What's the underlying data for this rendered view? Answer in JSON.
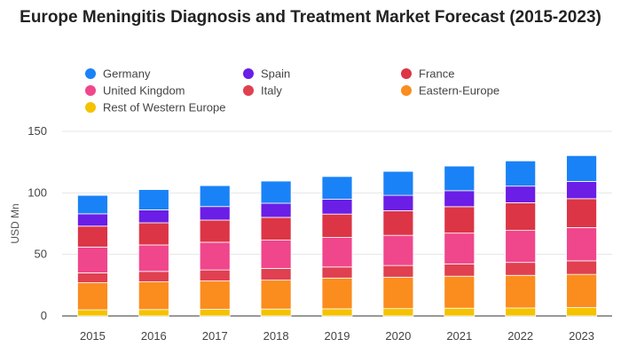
{
  "chart_data": {
    "type": "bar",
    "stacked": true,
    "title": "Europe Meningitis Diagnosis and Treatment Market Forecast (2015-2023)",
    "xlabel": "",
    "ylabel": "USD Mn",
    "ylim": [
      0,
      150
    ],
    "yticks": [
      "0",
      "50",
      "100",
      "150"
    ],
    "grid": true,
    "legend_position": "top",
    "categories": [
      "2015",
      "2016",
      "2017",
      "2018",
      "2019",
      "2020",
      "2021",
      "2022",
      "2023"
    ],
    "series": [
      {
        "name": "Rest of Western Europe",
        "color": "#f5c200",
        "values": [
          5,
          5.2,
          5.4,
          5.6,
          5.8,
          6.0,
          6.3,
          6.5,
          6.8
        ]
      },
      {
        "name": "Eastern-Europe",
        "color": "#fb8c1e",
        "values": [
          22,
          22.5,
          23,
          23.5,
          25,
          25.5,
          26,
          26.5,
          27
        ]
      },
      {
        "name": "Italy",
        "color": "#e04050",
        "values": [
          8,
          8.5,
          9,
          9.5,
          9,
          9.5,
          10,
          10.5,
          11
        ]
      },
      {
        "name": "United Kingdom",
        "color": "#f0468c",
        "values": [
          21,
          21.5,
          22.5,
          23,
          24,
          24.5,
          25,
          26,
          27
        ]
      },
      {
        "name": "France",
        "color": "#dc3545",
        "values": [
          17,
          18,
          18,
          18.5,
          19,
          20,
          21.5,
          22.5,
          23.5
        ]
      },
      {
        "name": "Spain",
        "color": "#6a1ee6",
        "values": [
          10,
          10.5,
          11,
          11.5,
          12,
          12.5,
          13,
          13.5,
          14
        ]
      },
      {
        "name": "Germany",
        "color": "#1a82f7",
        "values": [
          15,
          16.5,
          17,
          18,
          18.5,
          19.5,
          20,
          20.5,
          21
        ]
      }
    ],
    "legend_order": [
      "Germany",
      "Spain",
      "France",
      "United Kingdom",
      "Italy",
      "Eastern-Europe",
      "Rest of Western Europe"
    ]
  }
}
